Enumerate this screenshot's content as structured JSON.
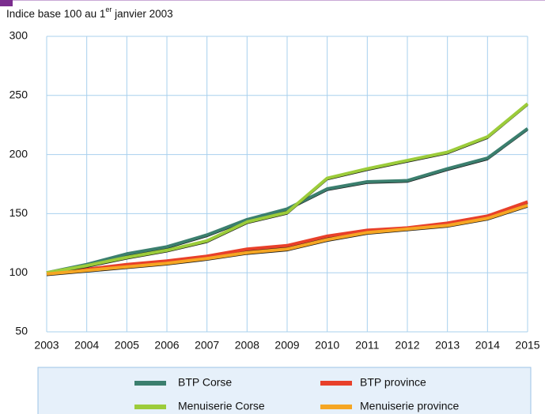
{
  "chart_data": {
    "type": "line",
    "y_label": [
      "Indice base 100 au 1",
      "er",
      " janvier 2003"
    ],
    "x": [
      2003,
      2004,
      2005,
      2006,
      2007,
      2008,
      2009,
      2010,
      2011,
      2012,
      2013,
      2014,
      2015
    ],
    "xlim": [
      2003,
      2015
    ],
    "xticks": [
      2003,
      2004,
      2005,
      2006,
      2007,
      2008,
      2009,
      2010,
      2011,
      2012,
      2013,
      2014,
      2015
    ],
    "ylim": [
      50,
      300
    ],
    "yticks": [
      50,
      100,
      150,
      200,
      250,
      300
    ],
    "grid": true,
    "series": [
      {
        "name": "BTP Corse",
        "color": "#3b7f6e",
        "values": [
          100,
          107,
          116,
          122,
          132,
          145,
          154,
          171,
          177,
          178,
          188,
          197,
          222
        ]
      },
      {
        "name": "BTP province",
        "color": "#e8402a",
        "values": [
          100,
          103,
          107,
          110,
          114,
          120,
          123,
          131,
          136,
          138,
          142,
          148,
          160
        ]
      },
      {
        "name": "Menuiserie Corse",
        "color": "#9ccc3a",
        "values": [
          100,
          106,
          113,
          119,
          127,
          143,
          151,
          180,
          188,
          195,
          202,
          215,
          243
        ]
      },
      {
        "name": "Menuiserie province",
        "color": "#f5a623",
        "values": [
          99,
          102,
          105,
          108,
          112,
          117,
          120,
          128,
          134,
          137,
          140,
          146,
          157
        ]
      }
    ]
  }
}
